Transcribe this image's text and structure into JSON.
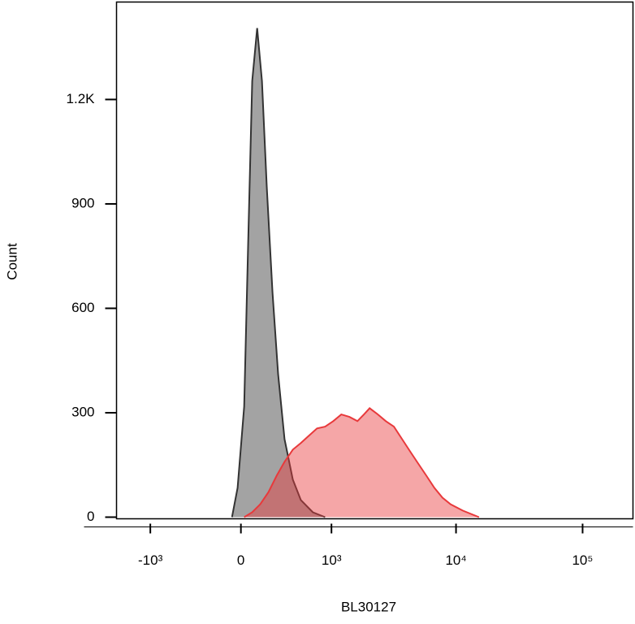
{
  "chart_data": {
    "type": "histogram-overlay",
    "x_label": "BL30127",
    "y_label": "Count",
    "xscale": "biexponential",
    "xlim": [
      -1900,
      250000
    ],
    "xticks": [
      {
        "value": -1000,
        "label": "-10³"
      },
      0,
      {
        "value": 1000,
        "label": "10³"
      },
      {
        "value": 10000,
        "label": "10⁴"
      },
      {
        "value": 100000,
        "label": "10⁵"
      }
    ],
    "ylim": [
      0,
      1480
    ],
    "yticks": [
      0,
      300,
      600,
      900,
      {
        "value": 1200,
        "label": "1.2K"
      }
    ],
    "series": [
      {
        "color": "#8c8c8c",
        "x": [
          -65,
          -24,
          24,
          53,
          83,
          120,
          157,
          195,
          243,
          292,
          352,
          436,
          528,
          686,
          882
        ],
        "values": [
          0,
          84,
          318,
          786,
          1253,
          1405,
          1253,
          950,
          645,
          411,
          224,
          108,
          49,
          14,
          0
        ]
      },
      {
        "color": "#e8393b",
        "x": [
          24,
          83,
          144,
          209,
          279,
          352,
          436,
          528,
          631,
          748,
          882,
          1035,
          1210,
          1411,
          1642,
          1854,
          2060,
          2400,
          2776,
          3220,
          3740,
          4330,
          5020,
          5830,
          6750,
          7820,
          9060,
          11300,
          15200
        ],
        "values": [
          0,
          14,
          37,
          72,
          119,
          159,
          194,
          213,
          234,
          255,
          260,
          276,
          295,
          288,
          276,
          295,
          313,
          295,
          276,
          260,
          224,
          189,
          154,
          119,
          84,
          56,
          37,
          19,
          0
        ]
      }
    ]
  }
}
